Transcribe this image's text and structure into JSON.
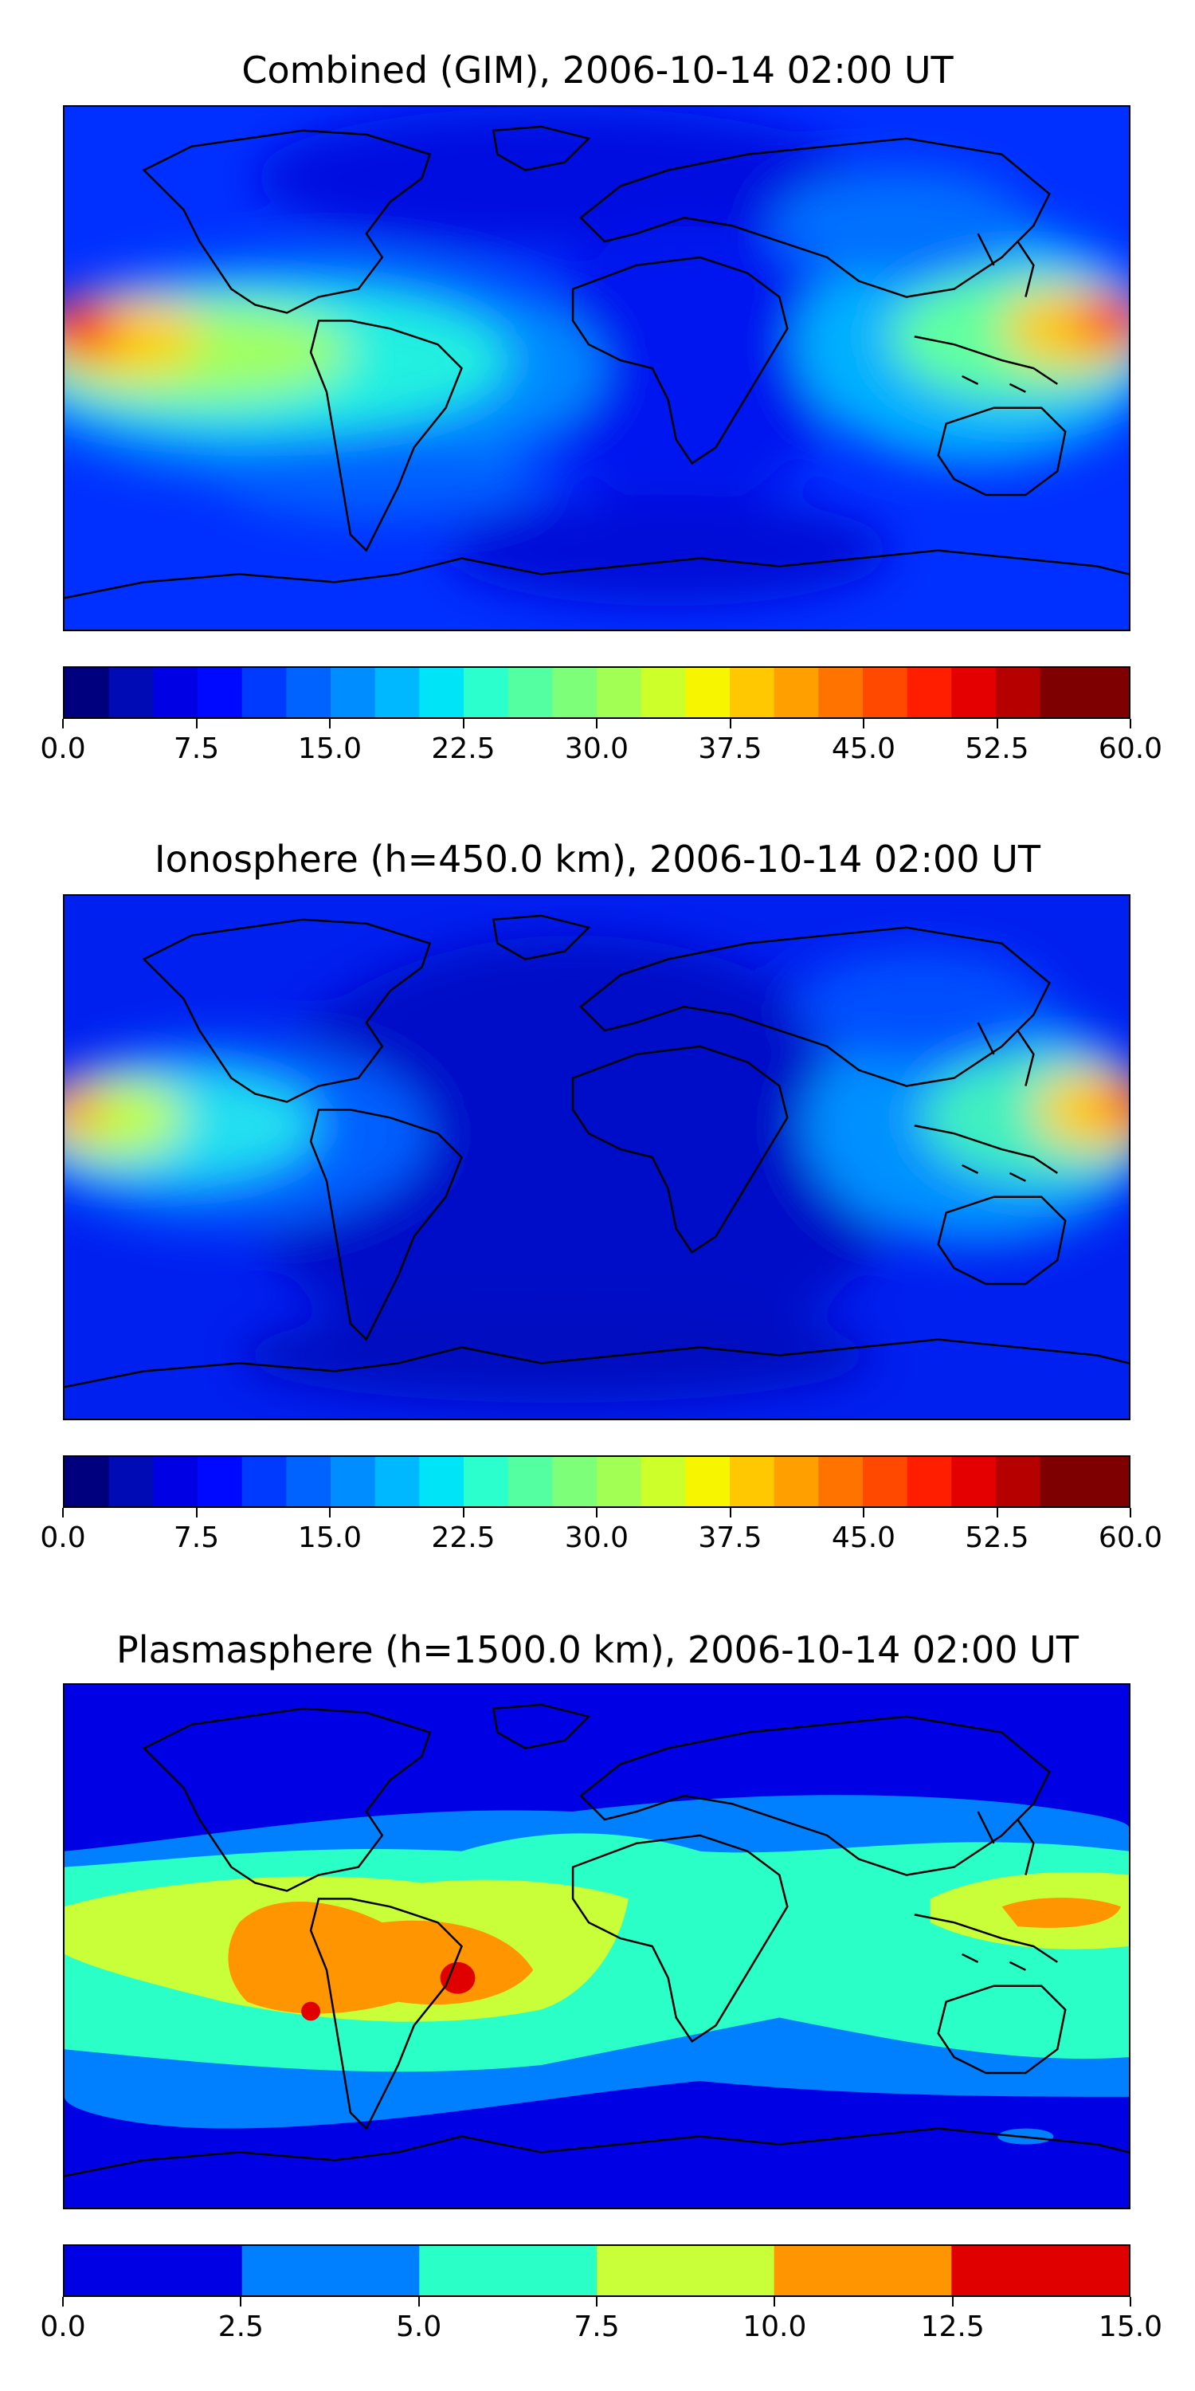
{
  "panels": [
    {
      "title": "Combined (GIM), 2006-10-14 02:00 UT",
      "colorbar": {
        "min": 0,
        "max": 60,
        "levels": 24,
        "colors": [
          "#00007f",
          "#000bb6",
          "#0000e4",
          "#0009ff",
          "#0039ff",
          "#0063ff",
          "#008dff",
          "#00b8ff",
          "#00e4f8",
          "#2affcd",
          "#54ffa2",
          "#7dff7a",
          "#a2ff54",
          "#cdff2a",
          "#f8f500",
          "#ffc800",
          "#ff9f00",
          "#ff7400",
          "#ff4900",
          "#ff1e00",
          "#e40000",
          "#b60000",
          "#7f0000",
          "#7f0000"
        ],
        "tick_labels": [
          "0.0",
          "7.5",
          "15.0",
          "22.5",
          "30.0",
          "37.5",
          "45.0",
          "52.5",
          "60.0"
        ]
      }
    },
    {
      "title": "Ionosphere  (h=450.0 km), 2006-10-14 02:00 UT",
      "colorbar": {
        "min": 0,
        "max": 60,
        "levels": 24,
        "colors": [
          "#00007f",
          "#000bb6",
          "#0000e4",
          "#0009ff",
          "#0039ff",
          "#0063ff",
          "#008dff",
          "#00b8ff",
          "#00e4f8",
          "#2affcd",
          "#54ffa2",
          "#7dff7a",
          "#a2ff54",
          "#cdff2a",
          "#f8f500",
          "#ffc800",
          "#ff9f00",
          "#ff7400",
          "#ff4900",
          "#ff1e00",
          "#e40000",
          "#b60000",
          "#7f0000",
          "#7f0000"
        ],
        "tick_labels": [
          "0.0",
          "7.5",
          "15.0",
          "22.5",
          "30.0",
          "37.5",
          "45.0",
          "52.5",
          "60.0"
        ]
      }
    },
    {
      "title": "Plasmasphere (h=1500.0 km), 2006-10-14 02:00 UT",
      "colorbar": {
        "min": 0,
        "max": 15,
        "levels": 6,
        "colors": [
          "#0000e4",
          "#0080ff",
          "#2affc8",
          "#c8ff38",
          "#ff9500",
          "#e00000"
        ],
        "tick_labels": [
          "0.0",
          "2.5",
          "5.0",
          "7.5",
          "10.0",
          "12.5",
          "15.0"
        ]
      }
    }
  ]
}
